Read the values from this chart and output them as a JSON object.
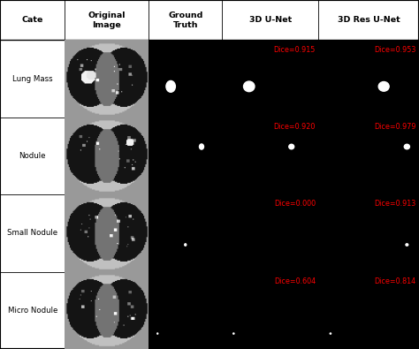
{
  "col_headers": [
    "Cate",
    "Original\nImage",
    "Ground\nTruth",
    "3D U-Net",
    "3D Res U-Net"
  ],
  "row_labels": [
    "Lung Mass",
    "Nodule",
    "Small Nodule",
    "Micro Nodule"
  ],
  "dice_unet": [
    "Dice=0.915",
    "Dice=0.920",
    "Dice=0.000",
    "Dice=0.604"
  ],
  "dice_resunet": [
    "Dice=0.953",
    "Dice=0.979",
    "Dice=0.913",
    "Dice=0.814"
  ],
  "bg_color": "#ffffff",
  "dice_color": "#ff0000",
  "nodule_gt": [
    {
      "xf": 0.3,
      "yf": 0.6,
      "r": 0.042
    },
    {
      "xf": 0.72,
      "yf": 0.38,
      "r": 0.02
    },
    {
      "xf": 0.5,
      "yf": 0.65,
      "r": 0.008
    },
    {
      "xf": 0.12,
      "yf": 0.8,
      "r": 0.004
    }
  ],
  "nodule_unet": [
    {
      "xf": 0.28,
      "yf": 0.6,
      "r": 0.038
    },
    {
      "xf": 0.72,
      "yf": 0.38,
      "r": 0.018
    },
    null,
    {
      "xf": 0.12,
      "yf": 0.8,
      "r": 0.004
    }
  ],
  "nodule_resunet": [
    {
      "xf": 0.65,
      "yf": 0.6,
      "r": 0.035
    },
    {
      "xf": 0.88,
      "yf": 0.38,
      "r": 0.018
    },
    {
      "xf": 0.88,
      "yf": 0.65,
      "r": 0.008
    },
    {
      "xf": 0.12,
      "yf": 0.8,
      "r": 0.004
    }
  ]
}
